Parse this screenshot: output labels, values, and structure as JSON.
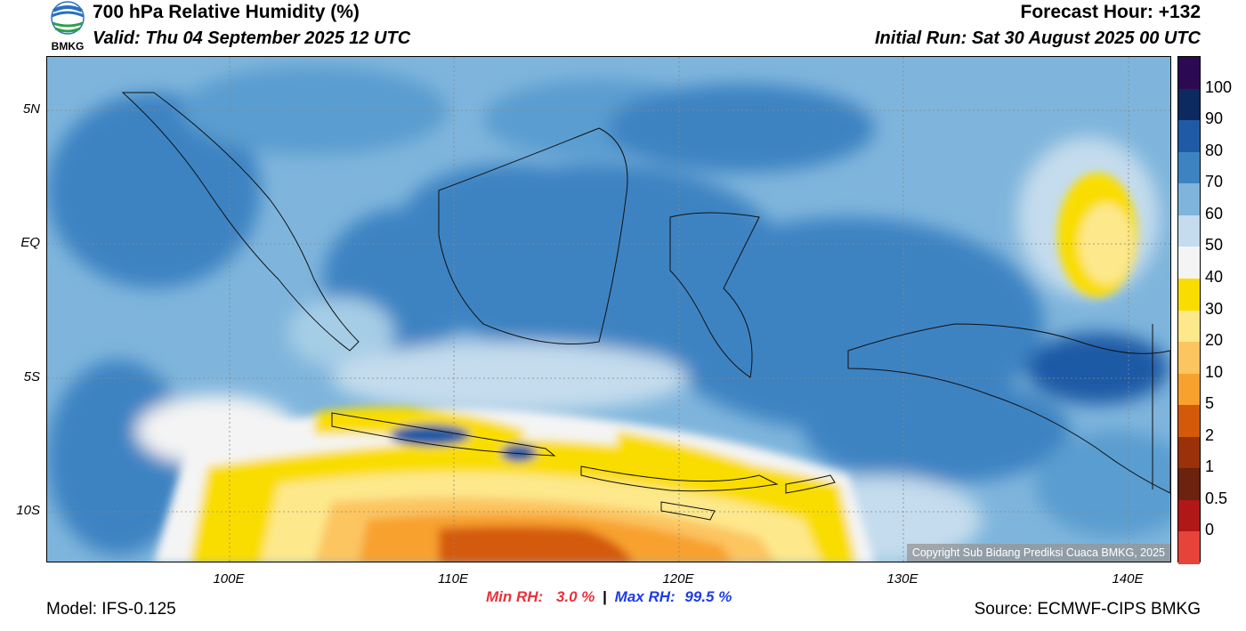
{
  "header": {
    "title": "700 hPa Relative Humidity (%)",
    "valid": "Valid: Thu 04 September 2025 12 UTC",
    "forecast_hour": "Forecast Hour: +132",
    "initial_run": "Initial Run: Sat 30 August 2025 00 UTC",
    "logo_text": "BMKG"
  },
  "footer": {
    "model": "Model: IFS-0.125",
    "source": "Source: ECMWF-CIPS BMKG",
    "min_label": "Min RH:",
    "min_value": "3.0 %",
    "separator": "|",
    "max_label": "Max RH:",
    "max_value": "99.5 %"
  },
  "map": {
    "copyright": "Copyright Sub Bidang Prediksi Cuaca BMKG, 2025",
    "lat_ticks": [
      "5N",
      "EQ",
      "5S",
      "10S"
    ],
    "lon_ticks": [
      "100E",
      "110E",
      "120E",
      "130E",
      "140E"
    ]
  },
  "colorbar": {
    "labels": [
      "100",
      "90",
      "80",
      "70",
      "60",
      "50",
      "40",
      "30",
      "20",
      "10",
      "5",
      "2",
      "1",
      "0.5",
      "0"
    ],
    "colors": [
      "#2c0a52",
      "#0c2a60",
      "#1f5aa6",
      "#3d83c2",
      "#7fb5dc",
      "#c4dced",
      "#f4f4f4",
      "#fadd00",
      "#fde88c",
      "#fcc560",
      "#f8a12f",
      "#d45a0a",
      "#9b3109",
      "#6b220f",
      "#b01818",
      "#e8433a"
    ],
    "rainbow_note": ""
  }
}
